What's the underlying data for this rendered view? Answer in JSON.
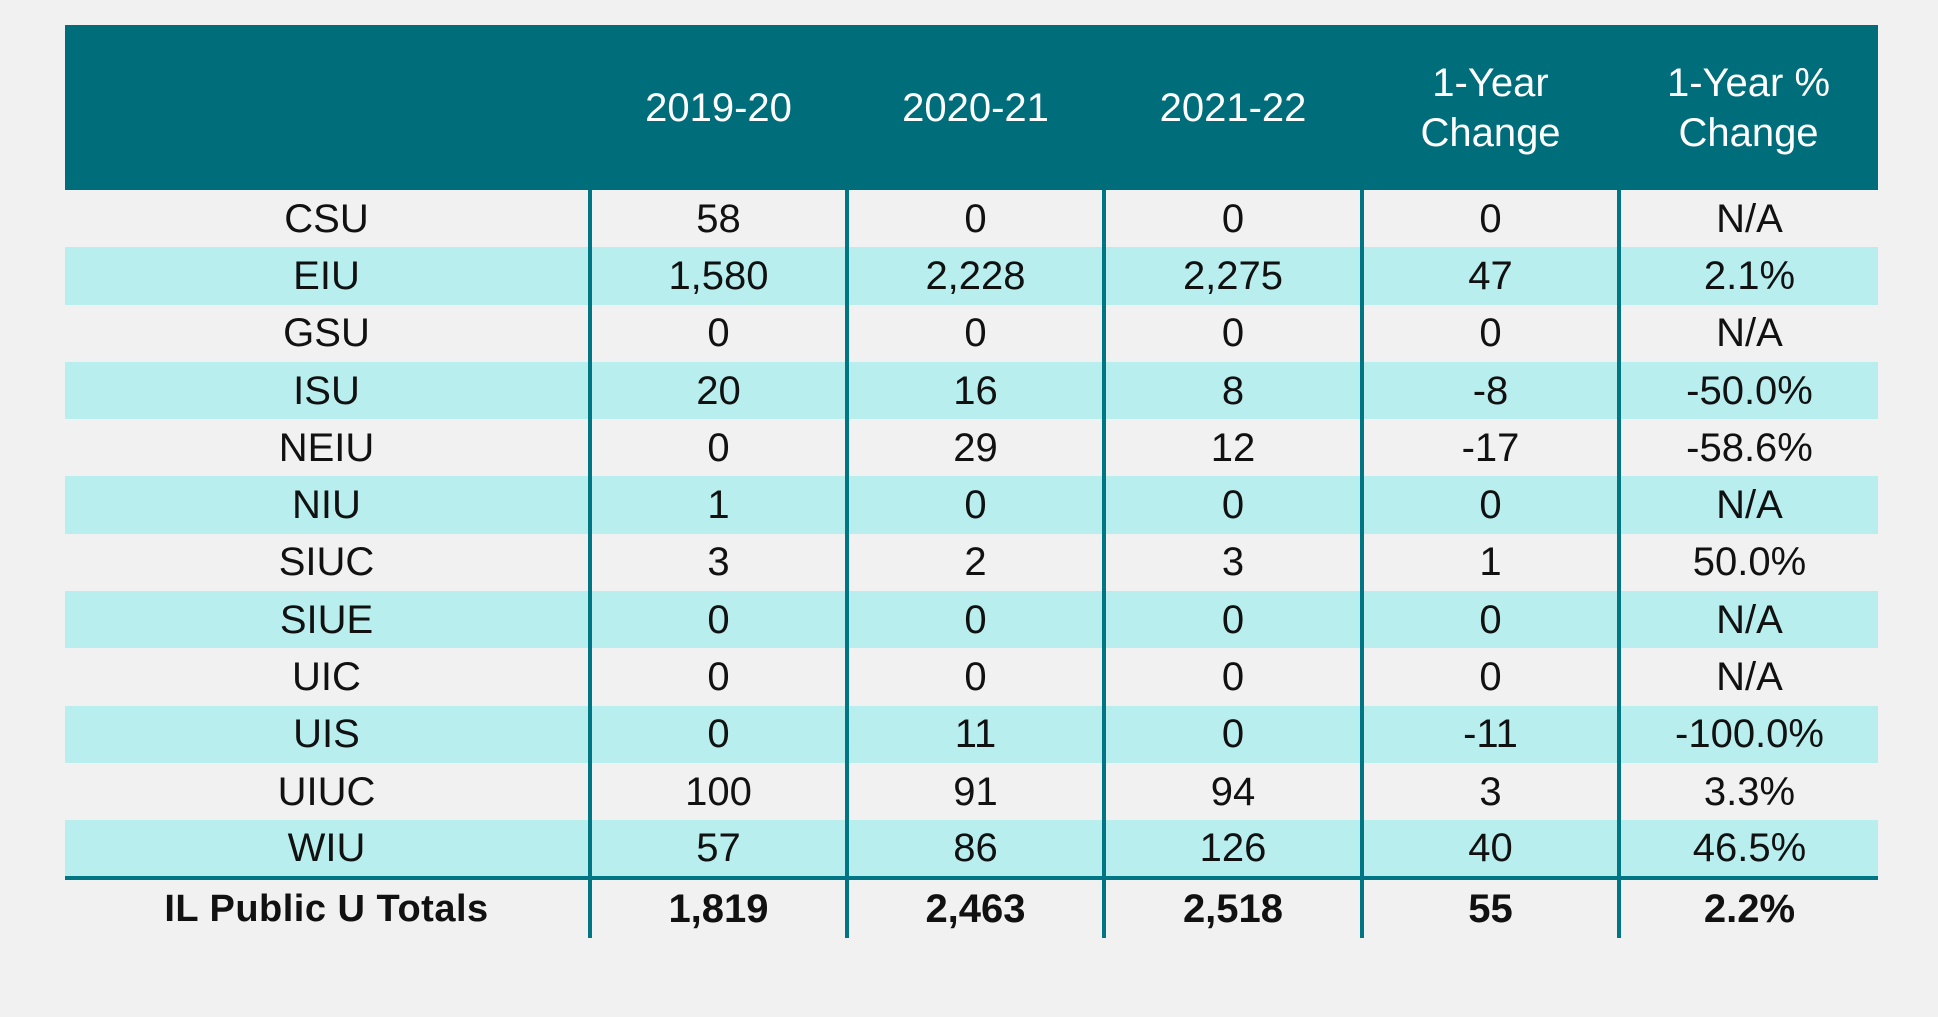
{
  "table": {
    "headers": [
      "",
      "2019-20",
      "2020-21",
      "2021-22",
      "1-Year Change",
      "1-Year % Change"
    ],
    "header_lines": [
      [
        ""
      ],
      [
        "2019-20"
      ],
      [
        "2020-21"
      ],
      [
        "2021-22"
      ],
      [
        "1-Year",
        "Change"
      ],
      [
        "1-Year %",
        "Change"
      ]
    ],
    "rows": [
      {
        "name": "CSU",
        "y2019": "58",
        "y2020": "0",
        "y2021": "0",
        "change": "0",
        "pct": "N/A"
      },
      {
        "name": "EIU",
        "y2019": "1,580",
        "y2020": "2,228",
        "y2021": "2,275",
        "change": "47",
        "pct": "2.1%"
      },
      {
        "name": "GSU",
        "y2019": "0",
        "y2020": "0",
        "y2021": "0",
        "change": "0",
        "pct": "N/A"
      },
      {
        "name": "ISU",
        "y2019": "20",
        "y2020": "16",
        "y2021": "8",
        "change": "-8",
        "pct": "-50.0%"
      },
      {
        "name": "NEIU",
        "y2019": "0",
        "y2020": "29",
        "y2021": "12",
        "change": "-17",
        "pct": "-58.6%"
      },
      {
        "name": "NIU",
        "y2019": "1",
        "y2020": "0",
        "y2021": "0",
        "change": "0",
        "pct": "N/A"
      },
      {
        "name": "SIUC",
        "y2019": "3",
        "y2020": "2",
        "y2021": "3",
        "change": "1",
        "pct": "50.0%"
      },
      {
        "name": "SIUE",
        "y2019": "0",
        "y2020": "0",
        "y2021": "0",
        "change": "0",
        "pct": "N/A"
      },
      {
        "name": "UIC",
        "y2019": "0",
        "y2020": "0",
        "y2021": "0",
        "change": "0",
        "pct": "N/A"
      },
      {
        "name": "UIS",
        "y2019": "0",
        "y2020": "11",
        "y2021": "0",
        "change": "-11",
        "pct": "-100.0%"
      },
      {
        "name": "UIUC",
        "y2019": "100",
        "y2020": "91",
        "y2021": "94",
        "change": "3",
        "pct": "3.3%"
      },
      {
        "name": "WIU",
        "y2019": "57",
        "y2020": "86",
        "y2021": "126",
        "change": "40",
        "pct": "46.5%"
      }
    ],
    "totals": {
      "name": "IL Public U Totals",
      "y2019": "1,819",
      "y2020": "2,463",
      "y2021": "2,518",
      "change": "55",
      "pct": "2.2%"
    }
  },
  "colors": {
    "header_bg": "#006d7a",
    "header_text": "#ffffff",
    "band_row": "#b9eeee",
    "plain_row": "#f1f1f1",
    "divider": "#007583"
  }
}
